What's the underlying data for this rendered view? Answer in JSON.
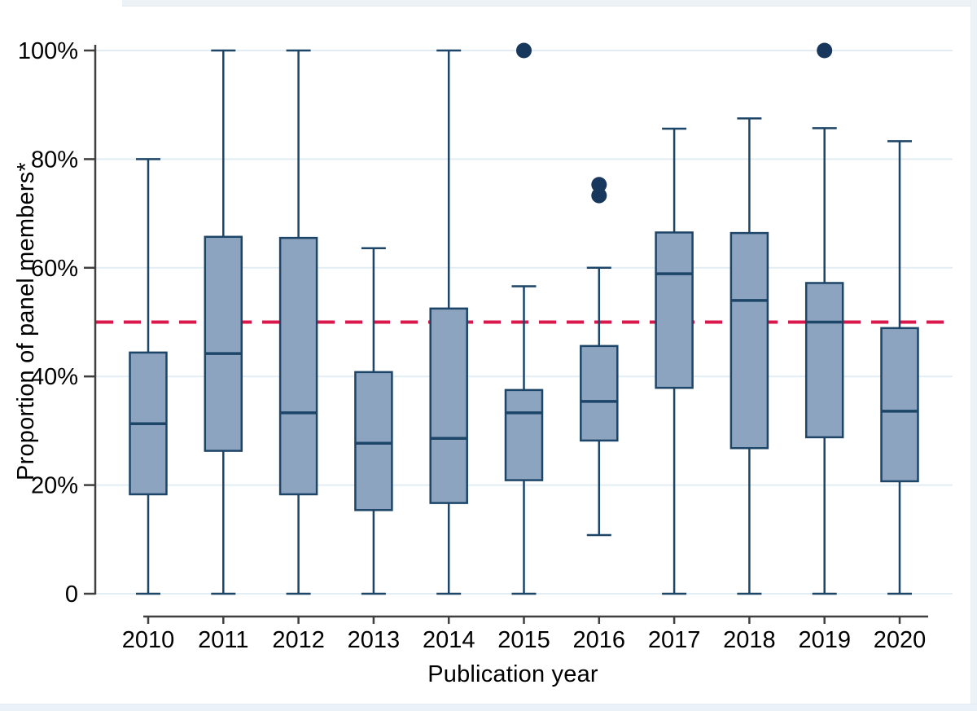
{
  "figure": {
    "xlabel": "Publication year",
    "ylabel": "Proportion of panel members*"
  },
  "chart_data": {
    "type": "box",
    "title": "",
    "xlabel": "Publication year",
    "ylabel": "Proportion of panel members*",
    "ylim": [
      0,
      100
    ],
    "grid": true,
    "legend": false,
    "y_ticks": [
      {
        "value": 0,
        "label": "0"
      },
      {
        "value": 20,
        "label": "20%"
      },
      {
        "value": 40,
        "label": "40%"
      },
      {
        "value": 60,
        "label": "60%"
      },
      {
        "value": 80,
        "label": "80%"
      },
      {
        "value": 100,
        "label": "100%"
      }
    ],
    "reference_line": {
      "value": 50,
      "style": "dashed"
    },
    "categories": [
      "2010",
      "2011",
      "2012",
      "2013",
      "2014",
      "2015",
      "2016",
      "2017",
      "2018",
      "2019",
      "2020"
    ],
    "series": [
      {
        "category": "2010",
        "whisker_low": 0,
        "q1": 18.3,
        "median": 31.3,
        "q3": 44.4,
        "whisker_high": 80,
        "outliers": []
      },
      {
        "category": "2011",
        "whisker_low": 0,
        "q1": 26.3,
        "median": 44.2,
        "q3": 65.7,
        "whisker_high": 100,
        "outliers": []
      },
      {
        "category": "2012",
        "whisker_low": 0,
        "q1": 18.3,
        "median": 33.3,
        "q3": 65.5,
        "whisker_high": 100,
        "outliers": []
      },
      {
        "category": "2013",
        "whisker_low": 0,
        "q1": 15.4,
        "median": 27.7,
        "q3": 40.8,
        "whisker_high": 63.6,
        "outliers": []
      },
      {
        "category": "2014",
        "whisker_low": 0,
        "q1": 16.7,
        "median": 28.6,
        "q3": 52.5,
        "whisker_high": 100,
        "outliers": []
      },
      {
        "category": "2015",
        "whisker_low": 0,
        "q1": 20.9,
        "median": 33.3,
        "q3": 37.5,
        "whisker_high": 56.6,
        "outliers": [
          100
        ]
      },
      {
        "category": "2016",
        "whisker_low": 10.8,
        "q1": 28.2,
        "median": 35.4,
        "q3": 45.6,
        "whisker_high": 60,
        "outliers": [
          73.3,
          75.3
        ]
      },
      {
        "category": "2017",
        "whisker_low": 0,
        "q1": 37.9,
        "median": 58.9,
        "q3": 66.5,
        "whisker_high": 85.6,
        "outliers": []
      },
      {
        "category": "2018",
        "whisker_low": 0,
        "q1": 26.8,
        "median": 54.0,
        "q3": 66.4,
        "whisker_high": 87.5,
        "outliers": []
      },
      {
        "category": "2019",
        "whisker_low": 0,
        "q1": 28.8,
        "median": 50.0,
        "q3": 57.2,
        "whisker_high": 85.7,
        "outliers": [
          100
        ]
      },
      {
        "category": "2020",
        "whisker_low": 0,
        "q1": 20.7,
        "median": 33.6,
        "q3": 48.9,
        "whisker_high": 83.3,
        "outliers": []
      }
    ],
    "colors": {
      "box_fill": "#8ca4bf",
      "box_stroke": "#1d4568",
      "outlier": "#17375c",
      "reference_line": "#d9174a",
      "gridline": "#e2edf4",
      "axis": "#3f3f3f",
      "text": "#000000"
    }
  }
}
